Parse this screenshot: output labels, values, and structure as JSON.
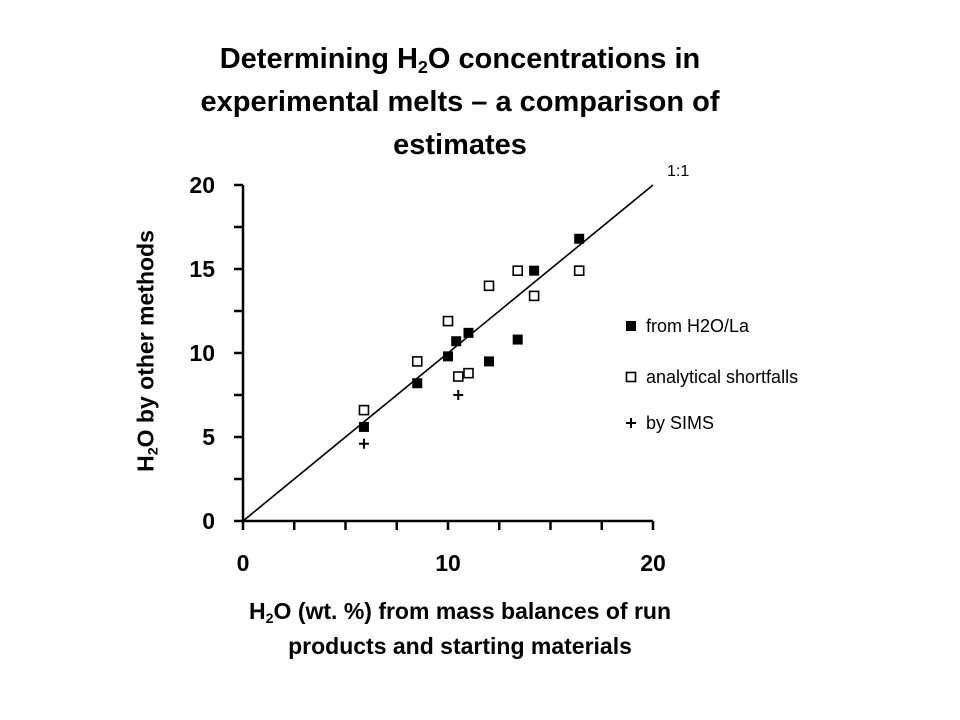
{
  "title": {
    "line1_a": "Determining H",
    "line1_sub": "2",
    "line1_b": "O concentrations in",
    "line2": "experimental melts – a comparison of",
    "line3": "estimates"
  },
  "xlabel": {
    "a": "H",
    "sub": "2",
    "b": "O (wt. %) from mass balances of run",
    "line2": "products and starting materials"
  },
  "ylabel": {
    "a": "H",
    "sub": "2",
    "b": "O by other methods"
  },
  "chart_data": {
    "type": "scatter",
    "xlim": [
      0,
      20
    ],
    "ylim": [
      0,
      20
    ],
    "x_ticks": [
      0,
      10,
      20
    ],
    "y_ticks": [
      0,
      5,
      10,
      15,
      20
    ],
    "annotation": "1:1",
    "reference_line": {
      "x": [
        0,
        20
      ],
      "y": [
        0,
        20
      ]
    },
    "legend_position": "right",
    "series": [
      {
        "name": "from H2O/La",
        "marker": "filled-square",
        "points": [
          [
            5.9,
            5.6
          ],
          [
            8.5,
            8.2
          ],
          [
            10.0,
            9.8
          ],
          [
            10.4,
            10.7
          ],
          [
            11.0,
            11.2
          ],
          [
            12.0,
            9.5
          ],
          [
            13.4,
            10.8
          ],
          [
            14.2,
            14.9
          ],
          [
            16.4,
            16.8
          ]
        ]
      },
      {
        "name": "analytical shortfalls",
        "marker": "open-square",
        "points": [
          [
            5.9,
            6.6
          ],
          [
            8.5,
            9.5
          ],
          [
            10.0,
            11.9
          ],
          [
            10.5,
            8.6
          ],
          [
            11.0,
            8.8
          ],
          [
            12.0,
            14.0
          ],
          [
            13.4,
            14.9
          ],
          [
            14.2,
            13.4
          ],
          [
            16.4,
            14.9
          ]
        ]
      },
      {
        "name": "by SIMS",
        "marker": "plus",
        "points": [
          [
            5.9,
            4.6
          ],
          [
            10.5,
            7.5
          ]
        ]
      }
    ]
  }
}
